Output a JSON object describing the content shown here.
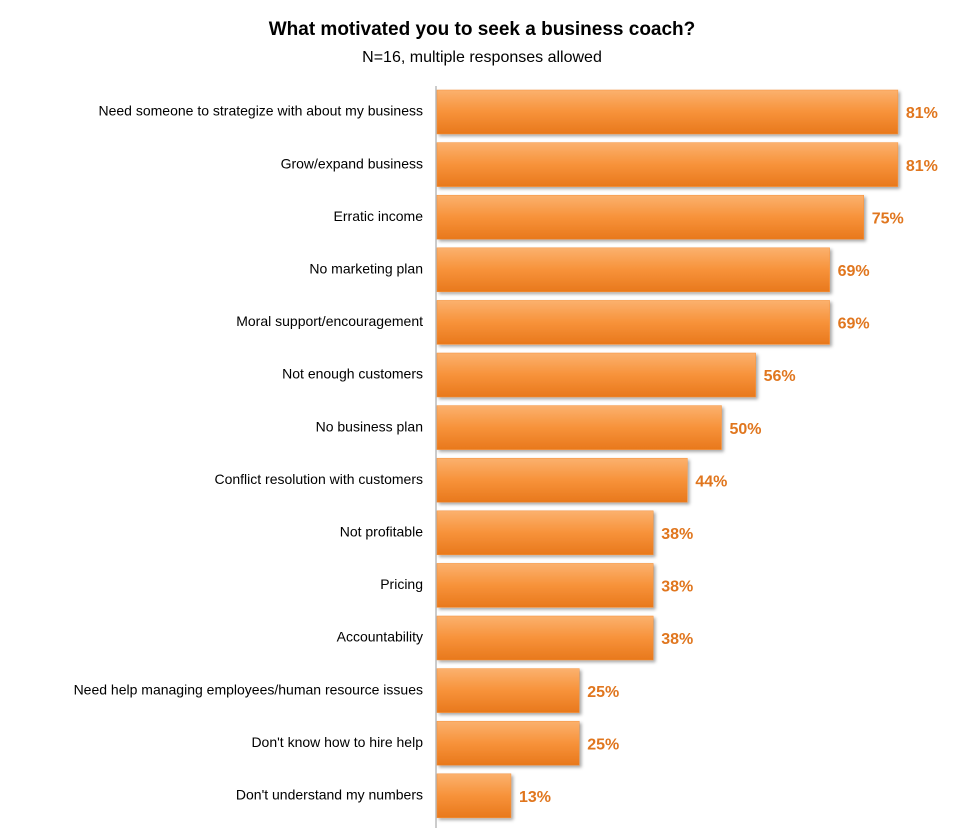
{
  "chart_data": {
    "type": "bar",
    "orientation": "horizontal",
    "title": "What motivated you to seek a business coach?",
    "subtitle": "N=16, multiple responses allowed",
    "categories": [
      "Need someone to strategize with about my business",
      "Grow/expand business",
      "Erratic income",
      "No marketing plan",
      "Moral support/encouragement",
      "Not enough customers",
      "No business plan",
      "Conflict resolution with customers",
      "Not profitable",
      "Pricing",
      "Accountability",
      "Need help managing employees/human resource issues",
      "Don't know how to hire help",
      "Don't understand my numbers"
    ],
    "values": [
      81,
      81,
      75,
      69,
      69,
      56,
      50,
      44,
      38,
      38,
      38,
      25,
      25,
      13
    ],
    "value_labels": [
      "81%",
      "81%",
      "75%",
      "69%",
      "69%",
      "56%",
      "50%",
      "44%",
      "38%",
      "38%",
      "38%",
      "25%",
      "25%",
      "13%"
    ],
    "color": "#f7923a"
  }
}
